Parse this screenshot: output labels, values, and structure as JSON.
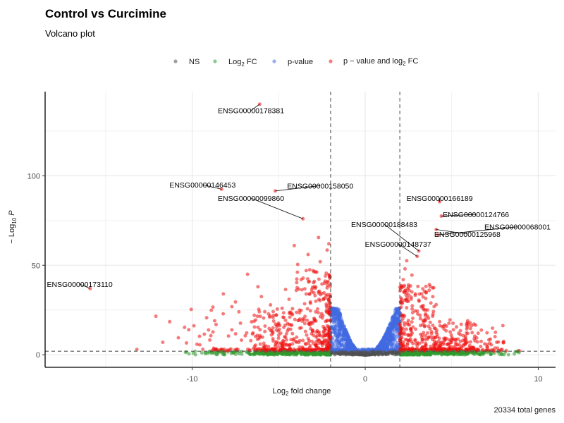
{
  "chart_data": {
    "type": "scatter",
    "title": "Control vs Curcimine",
    "subtitle": "Volcano plot",
    "xlabel_main": "Log",
    "xlabel_sub": "2",
    "xlabel_tail": " fold change",
    "ylabel_prefix": "− Log",
    "ylabel_sub": "10",
    "ylabel_tail": " P",
    "caption": "20334 total genes",
    "xlim": [
      -18.5,
      11
    ],
    "ylim": [
      -7,
      147
    ],
    "x_ticks": [
      -10,
      0,
      10
    ],
    "x_tick_labels": [
      "-10",
      "0",
      "10"
    ],
    "y_ticks": [
      0,
      50,
      100
    ],
    "y_tick_labels": [
      "0",
      "50",
      "100"
    ],
    "fc_cutoffs": [
      -2,
      2
    ],
    "p_cutoff_log10": 2,
    "colors": {
      "NS": "#505050",
      "Log2FC": "#2e9b2e",
      "pvalue": "#4169e1",
      "both": "#ee1111",
      "cutoff": "#555555",
      "grid": "#ebebeb"
    },
    "legend": [
      {
        "label": "NS",
        "color": "#505050"
      },
      {
        "label": "Log",
        "sub": "2",
        "tail": " FC",
        "color": "#2e9b2e"
      },
      {
        "label": "p-value",
        "color": "#4169e1"
      },
      {
        "label": "p − value and log",
        "sub": "2",
        "tail": " FC",
        "color": "#ee1111"
      }
    ],
    "labeled_genes": [
      {
        "name": "ENSG00000178381",
        "x": -6.1,
        "y": 140,
        "lx": -6.6,
        "ly": 136.5
      },
      {
        "name": "ENSG00000146453",
        "x": -8.3,
        "y": 92.5,
        "lx": -9.4,
        "ly": 95
      },
      {
        "name": "ENSG00000158050",
        "x": -5.2,
        "y": 91.5,
        "lx": -2.6,
        "ly": 94.5
      },
      {
        "name": "ENSG00000099860",
        "x": -3.6,
        "y": 76,
        "lx": -6.6,
        "ly": 87.5
      },
      {
        "name": "ENSG00000166189",
        "x": 4.3,
        "y": 85.5,
        "lx": 4.3,
        "ly": 87.5
      },
      {
        "name": "ENSG00000124766",
        "x": 4.4,
        "y": 77.5,
        "lx": 6.4,
        "ly": 78.5
      },
      {
        "name": "ENSG00000188483",
        "x": 3.1,
        "y": 58,
        "lx": 1.1,
        "ly": 73
      },
      {
        "name": "ENSG00000068001",
        "x": 4.2,
        "y": 67,
        "lx": 8.8,
        "ly": 71.5
      },
      {
        "name": "ENSG00000125968",
        "x": 4.1,
        "y": 70,
        "lx": 5.9,
        "ly": 67.5
      },
      {
        "name": "ENSG00000148737",
        "x": 3.0,
        "y": 55,
        "lx": 1.9,
        "ly": 62
      },
      {
        "name": "ENSG00000173110",
        "x": -15.9,
        "y": 37,
        "lx": -16.5,
        "ly": 39.5
      }
    ],
    "lo_points": [
      [
        -12.1,
        21.5
      ],
      [
        -11.3,
        18.5
      ],
      [
        -10.2,
        14.0
      ],
      [
        -9.9,
        16.2
      ],
      [
        -8.7,
        19.0
      ],
      [
        -8.2,
        34.0
      ],
      [
        -7.5,
        29.5
      ],
      [
        -7.3,
        24.0
      ],
      [
        -6.8,
        45.0
      ],
      [
        -6.2,
        38.0
      ],
      [
        -6.0,
        32.5
      ],
      [
        -5.3,
        22.0
      ],
      [
        -4.6,
        36.5
      ],
      [
        -4.4,
        31.0
      ],
      [
        -4.1,
        61.0
      ],
      [
        -3.9,
        50.5
      ],
      [
        -3.7,
        42.0
      ],
      [
        -3.3,
        56.0
      ],
      [
        -3.0,
        47.0
      ],
      [
        -2.7,
        65.5
      ],
      [
        -2.6,
        52.0
      ],
      [
        -2.5,
        39.5
      ],
      [
        -10.8,
        9.5
      ],
      [
        -9.3,
        11.5
      ],
      [
        -7.9,
        10.5
      ],
      [
        -6.4,
        15.5
      ],
      [
        -5.8,
        13.0
      ],
      [
        -5.0,
        17.0
      ],
      [
        -4.8,
        26.0
      ],
      [
        -3.5,
        28.5
      ],
      [
        -2.9,
        33.0
      ],
      [
        -2.3,
        44.0
      ],
      [
        -2.2,
        58.5
      ],
      [
        -2.1,
        62.0
      ],
      [
        -13.2,
        3.0
      ],
      [
        -11.7,
        7.0
      ]
    ],
    "hi_points": [
      [
        2.3,
        48.0
      ],
      [
        2.5,
        39.0
      ],
      [
        2.7,
        44.5
      ],
      [
        2.9,
        34.0
      ],
      [
        3.1,
        30.5
      ],
      [
        3.3,
        27.0
      ],
      [
        3.6,
        25.0
      ],
      [
        3.9,
        21.5
      ],
      [
        4.3,
        18.5
      ],
      [
        4.7,
        16.0
      ],
      [
        5.1,
        14.0
      ],
      [
        5.4,
        12.0
      ],
      [
        5.8,
        10.5
      ],
      [
        6.3,
        9.0
      ],
      [
        6.7,
        7.5
      ],
      [
        7.2,
        6.5
      ],
      [
        7.6,
        7.0
      ],
      [
        8.0,
        7.5
      ],
      [
        3.7,
        36.0
      ],
      [
        4.1,
        28.0
      ],
      [
        2.4,
        52.5
      ],
      [
        2.2,
        42.0
      ],
      [
        3.5,
        31.5
      ],
      [
        4.9,
        19.5
      ]
    ]
  }
}
